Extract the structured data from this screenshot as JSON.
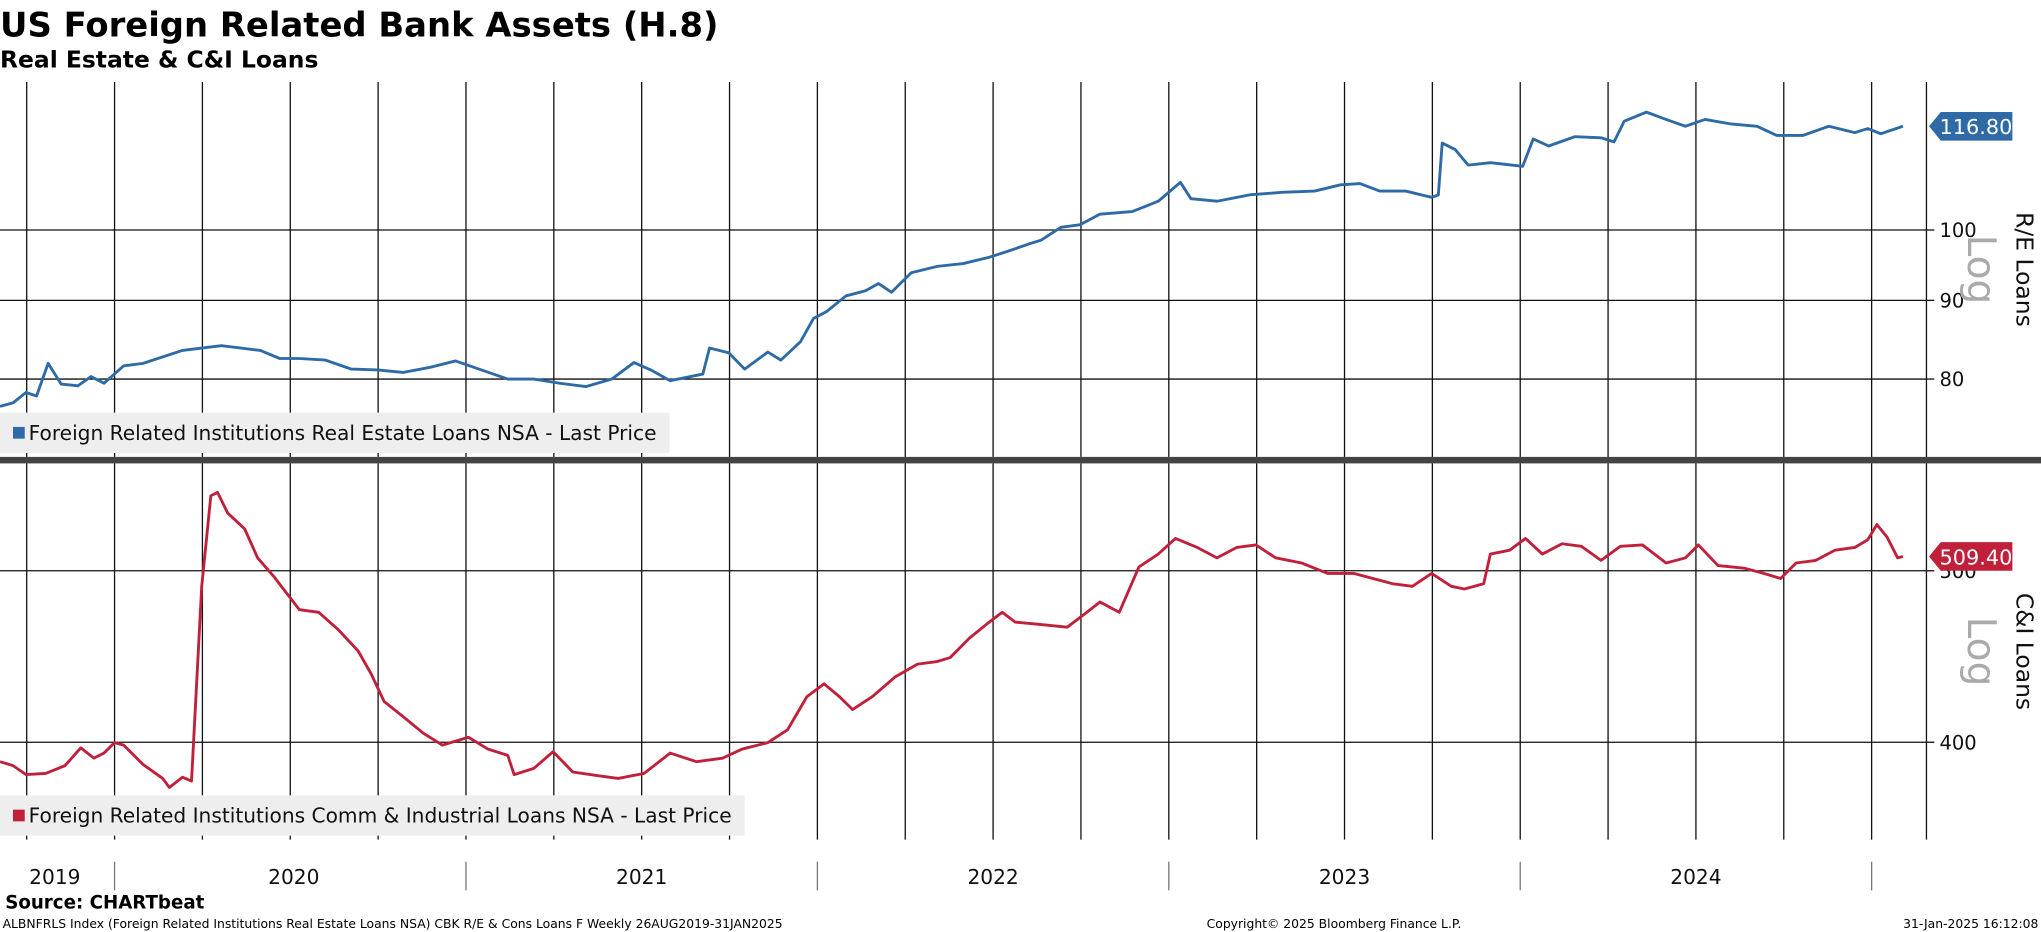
{
  "header": {
    "title": "US Foreign Related Bank Assets (H.8)",
    "subtitle": "Real Estate & C&I Loans"
  },
  "chart_data": [
    {
      "type": "line",
      "y_label": "R/E Loans",
      "scale_label": "Log",
      "log_scale": true,
      "grid": true,
      "xlim": [
        2019.674,
        2025.156
      ],
      "xgrid": [
        2019.75,
        2020,
        2020.25,
        2020.5,
        2020.75,
        2021,
        2021.25,
        2021.5,
        2021.75,
        2022,
        2022.25,
        2022.5,
        2022.75,
        2023,
        2023.25,
        2023.5,
        2023.75,
        2024,
        2024.25,
        2024.5,
        2024.75,
        2025
      ],
      "ylim": [
        71.2,
        124.8
      ],
      "yticks": [
        80,
        90,
        100
      ],
      "x": [
        2019.674,
        2019.711,
        2019.748,
        2019.778,
        2019.811,
        2019.848,
        2019.896,
        2019.933,
        2019.97,
        2020.026,
        2020.081,
        2020.137,
        2020.193,
        2020.248,
        2020.304,
        2020.341,
        2020.415,
        2020.47,
        2020.526,
        2020.6,
        2020.674,
        2020.748,
        2020.822,
        2020.896,
        2020.97,
        2021.044,
        2021.119,
        2021.193,
        2021.267,
        2021.341,
        2021.415,
        2021.478,
        2021.526,
        2021.581,
        2021.674,
        2021.693,
        2021.748,
        2021.793,
        2021.859,
        2021.896,
        2021.952,
        2021.989,
        2022.026,
        2022.081,
        2022.137,
        2022.174,
        2022.211,
        2022.267,
        2022.341,
        2022.415,
        2022.489,
        2022.544,
        2022.6,
        2022.637,
        2022.693,
        2022.748,
        2022.804,
        2022.896,
        2022.97,
        2023.033,
        2023.063,
        2023.137,
        2023.23,
        2023.322,
        2023.415,
        2023.489,
        2023.544,
        2023.6,
        2023.674,
        2023.748,
        2023.767,
        2023.778,
        2023.815,
        2023.852,
        2023.915,
        2024.007,
        2024.037,
        2024.081,
        2024.156,
        2024.23,
        2024.267,
        2024.296,
        2024.359,
        2024.415,
        2024.47,
        2024.526,
        2024.6,
        2024.674,
        2024.73,
        2024.804,
        2024.878,
        2024.952,
        2024.989,
        2025.026,
        2025.089
      ],
      "series": [
        {
          "name": "Foreign Related Institutions Real Estate Loans NSA - Last Price",
          "color": "#2e6aa6",
          "values": [
            76.8,
            77.2,
            78.4,
            78.0,
            81.9,
            79.4,
            79.2,
            80.3,
            79.5,
            81.6,
            81.9,
            82.7,
            83.5,
            83.8,
            84.1,
            83.9,
            83.5,
            82.5,
            82.5,
            82.3,
            81.2,
            81.1,
            80.8,
            81.4,
            82.2,
            81.1,
            80.0,
            80.0,
            79.5,
            79.1,
            80.0,
            82.0,
            81.1,
            79.8,
            80.6,
            83.8,
            83.2,
            81.2,
            83.3,
            82.3,
            84.6,
            87.6,
            88.5,
            90.6,
            91.3,
            92.3,
            91.1,
            93.8,
            94.7,
            95.1,
            96.0,
            96.9,
            97.9,
            98.5,
            100.4,
            100.8,
            102.4,
            102.8,
            104.4,
            107.4,
            104.8,
            104.4,
            105.4,
            105.8,
            106.0,
            107.0,
            107.2,
            106.0,
            106.0,
            105.0,
            105.4,
            113.9,
            112.8,
            110.2,
            110.6,
            110.0,
            114.6,
            113.4,
            115.0,
            114.8,
            114.1,
            117.7,
            119.3,
            118.0,
            116.8,
            118.0,
            117.2,
            116.8,
            115.2,
            115.2,
            116.8,
            115.7,
            116.4,
            115.5,
            116.8
          ],
          "last_price": {
            "value": 116.8,
            "label": "116.80"
          }
        }
      ]
    },
    {
      "type": "line",
      "y_label": "C&I Loans",
      "scale_label": "Log",
      "log_scale": true,
      "grid": true,
      "xlim": [
        2019.674,
        2025.156
      ],
      "xgrid": [
        2019.75,
        2020,
        2020.25,
        2020.5,
        2020.75,
        2021,
        2021.25,
        2021.5,
        2021.75,
        2022,
        2022.25,
        2022.5,
        2022.75,
        2023,
        2023.25,
        2023.5,
        2023.75,
        2024,
        2024.25,
        2024.5,
        2024.75,
        2025
      ],
      "xticks": [
        {
          "value": 2019.83,
          "label": "2019"
        },
        {
          "value": 2020.51,
          "label": "2020"
        },
        {
          "value": 2021.5,
          "label": "2021"
        },
        {
          "value": 2022.5,
          "label": "2022"
        },
        {
          "value": 2023.5,
          "label": "2023"
        },
        {
          "value": 2024.5,
          "label": "2024"
        }
      ],
      "ylim": [
        352.4,
        575
      ],
      "yticks": [
        400,
        500
      ],
      "x": [
        2019.674,
        2019.711,
        2019.748,
        2019.804,
        2019.859,
        2019.904,
        2019.941,
        2019.97,
        2020.0,
        2020.026,
        2020.081,
        2020.137,
        2020.156,
        2020.193,
        2020.219,
        2020.248,
        2020.274,
        2020.293,
        2020.322,
        2020.37,
        2020.407,
        2020.452,
        2020.526,
        2020.581,
        2020.637,
        2020.693,
        2020.73,
        2020.767,
        2020.822,
        2020.878,
        2020.933,
        2021.007,
        2021.063,
        2021.119,
        2021.137,
        2021.193,
        2021.248,
        2021.304,
        2021.378,
        2021.433,
        2021.507,
        2021.581,
        2021.656,
        2021.73,
        2021.785,
        2021.859,
        2021.915,
        2021.97,
        2022.019,
        2022.063,
        2022.1,
        2022.156,
        2022.222,
        2022.285,
        2022.341,
        2022.378,
        2022.433,
        2022.489,
        2022.526,
        2022.563,
        2022.637,
        2022.711,
        2022.767,
        2022.804,
        2022.859,
        2022.915,
        2022.97,
        2023.019,
        2023.081,
        2023.137,
        2023.193,
        2023.248,
        2023.304,
        2023.378,
        2023.452,
        2023.526,
        2023.581,
        2023.637,
        2023.693,
        2023.748,
        2023.804,
        2023.841,
        2023.896,
        2023.915,
        2023.97,
        2024.015,
        2024.063,
        2024.119,
        2024.174,
        2024.23,
        2024.285,
        2024.348,
        2024.415,
        2024.47,
        2024.507,
        2024.563,
        2024.637,
        2024.693,
        2024.741,
        2024.785,
        2024.841,
        2024.896,
        2024.952,
        2024.989,
        2025.015,
        2025.044,
        2025.074,
        2025.089
      ],
      "series": [
        {
          "name": "Foreign Related Institutions Comm & Industrial Loans NSA - Last Price",
          "color": "#c0203a",
          "values": [
            390.0,
            388.0,
            383.5,
            384.1,
            388.0,
            397.1,
            391.8,
            394.4,
            399.8,
            398.5,
            388.6,
            381.6,
            377.1,
            382.2,
            380.3,
            490.0,
            551.3,
            553.7,
            539.0,
            528.1,
            508.5,
            496.6,
            475.3,
            473.7,
            463.0,
            450.5,
            437.3,
            421.8,
            413.4,
            404.8,
            398.5,
            402.6,
            396.4,
            393.2,
            383.5,
            386.6,
            395.1,
            384.8,
            382.9,
            381.6,
            384.1,
            394.4,
            390.0,
            391.8,
            396.4,
            399.8,
            406.5,
            424.4,
            431.6,
            424.4,
            417.4,
            424.4,
            435.6,
            442.8,
            444.3,
            446.6,
            458.1,
            467.7,
            473.7,
            467.7,
            466.2,
            464.6,
            473.7,
            480.1,
            473.7,
            502.5,
            511.0,
            521.5,
            515.4,
            508.5,
            515.4,
            517.1,
            508.5,
            505.1,
            498.3,
            498.3,
            495.0,
            491.6,
            490.0,
            498.3,
            490.0,
            488.3,
            491.6,
            511.0,
            513.6,
            521.5,
            511.0,
            517.9,
            516.2,
            506.8,
            516.2,
            517.1,
            505.1,
            508.5,
            517.1,
            503.4,
            501.7,
            498.3,
            495.0,
            505.1,
            506.8,
            513.6,
            515.4,
            520.6,
            531.0,
            522.4,
            508.5,
            509.4
          ],
          "last_price": {
            "value": 509.4,
            "label": "509.40"
          }
        }
      ]
    }
  ],
  "footer": {
    "source": "Source: CHARTbeat",
    "info": "ALBNFRLS Index (Foreign Related Institutions Real Estate Loans NSA) CBK R/E & Cons Loans F  Weekly 26AUG2019-31JAN2025",
    "copyright": "Copyright© 2025 Bloomberg Finance L.P.",
    "timestamp": "31-Jan-2025 16:12:08"
  }
}
